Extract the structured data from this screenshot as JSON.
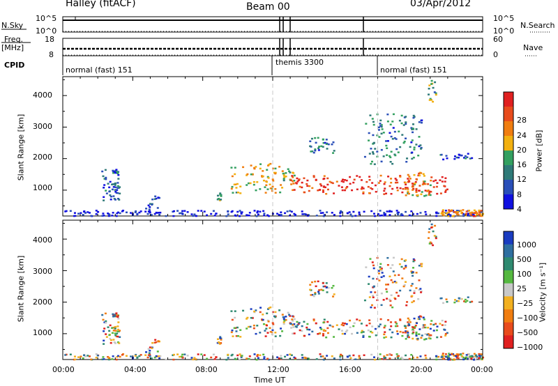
{
  "header": {
    "station": "Halley (fitACF)",
    "beam": "Beam 00",
    "date": "03/Apr/2012"
  },
  "top_panels": {
    "nsky_label": "N.Sky",
    "nsearch_label": "N.Search",
    "nsky_ticks": [
      "10^5",
      "10^0"
    ],
    "nsearch_ticks": [
      "10^5",
      "10^0"
    ],
    "freq_label": "Freq.",
    "freq_unit": "[MHz]",
    "freq_ticks": [
      "18",
      "8"
    ],
    "nave_label": "Nave",
    "nave_ticks": [
      "60",
      "0"
    ],
    "cpid_label": "CPID",
    "cpid_segments": [
      {
        "label": "normal (fast) 151",
        "start_hour": 0
      },
      {
        "label": "themis 3300",
        "start_hour": 12
      },
      {
        "label": "normal (fast) 151",
        "start_hour": 18
      }
    ]
  },
  "chart_data": [
    {
      "type": "heatmap",
      "title": "",
      "xlabel": "Time UT",
      "ylabel": "Slant Range [km]",
      "x_ticks": [
        "00:00",
        "04:00",
        "08:00",
        "12:00",
        "16:00",
        "20:00",
        "00:00"
      ],
      "x_range_hours": [
        0,
        24
      ],
      "y_ticks": [
        "1000",
        "2000",
        "3000",
        "4000"
      ],
      "y_range_km": [
        180,
        4600
      ],
      "colorbar_label": "Power [dB]",
      "colorbar_ticks": [
        "4",
        "8",
        "12",
        "16",
        "20",
        "24",
        "28"
      ],
      "colors": [
        "#1010e0",
        "#2a4fb8",
        "#2f7a78",
        "#33a060",
        "#f2b010",
        "#f07d10",
        "#e84b1c",
        "#e02020"
      ]
    },
    {
      "type": "heatmap",
      "title": "",
      "xlabel": "Time UT",
      "ylabel": "Slant Range [km]",
      "x_ticks": [
        "00:00",
        "04:00",
        "08:00",
        "12:00",
        "16:00",
        "20:00",
        "00:00"
      ],
      "x_range_hours": [
        0,
        24
      ],
      "y_ticks": [
        "1000",
        "2000",
        "3000",
        "4000"
      ],
      "y_range_km": [
        180,
        4600
      ],
      "colorbar_label": "Velocity [m s⁻¹]",
      "colorbar_ticks": [
        "1000",
        "500",
        "100",
        "25",
        "−25",
        "−100",
        "−500",
        "−1000"
      ],
      "colors": [
        "#1a3cc0",
        "#2f6fa0",
        "#2f8a70",
        "#55b840",
        "#c8c8c8",
        "#f2b020",
        "#f07d10",
        "#e84b1c",
        "#e02020"
      ]
    }
  ]
}
